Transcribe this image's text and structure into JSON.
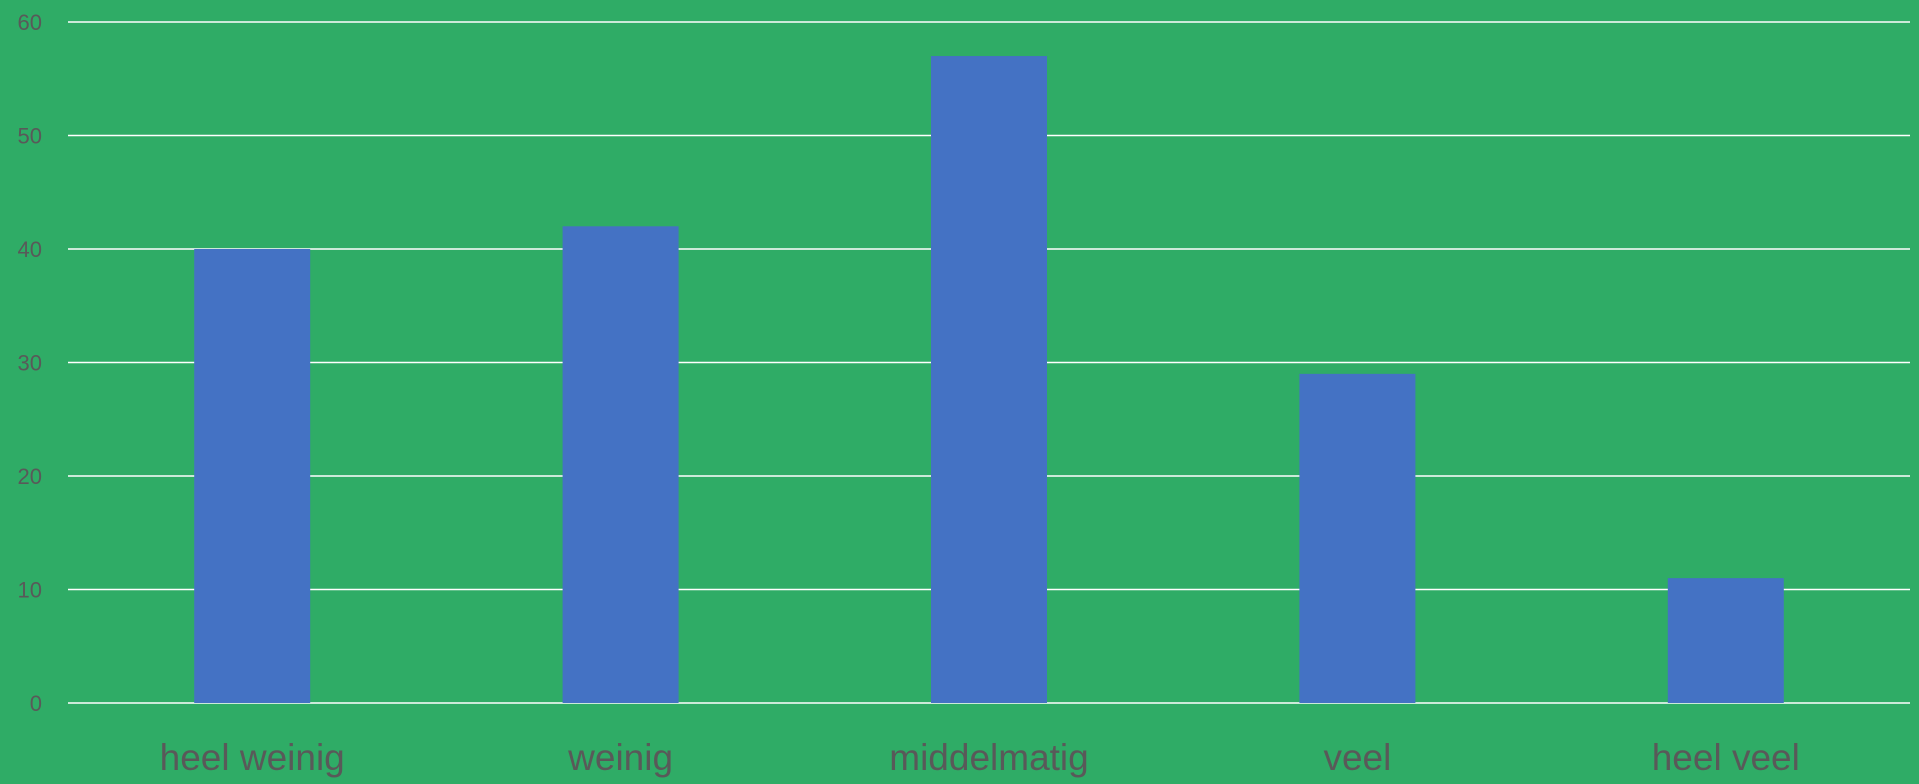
{
  "colors": {
    "background": "#2fac66",
    "bar": "#4472c4",
    "gridline": "#ffffff",
    "text": "#595959"
  },
  "chart_data": {
    "type": "bar",
    "categories": [
      "heel weinig",
      "weinig",
      "middelmatig",
      "veel",
      "heel veel"
    ],
    "values": [
      40,
      42,
      57,
      29,
      11
    ],
    "title": "",
    "xlabel": "",
    "ylabel": "",
    "ylim": [
      0,
      60
    ],
    "yticks": [
      0,
      10,
      20,
      30,
      40,
      50,
      60
    ],
    "grid": true,
    "legend": "none"
  }
}
